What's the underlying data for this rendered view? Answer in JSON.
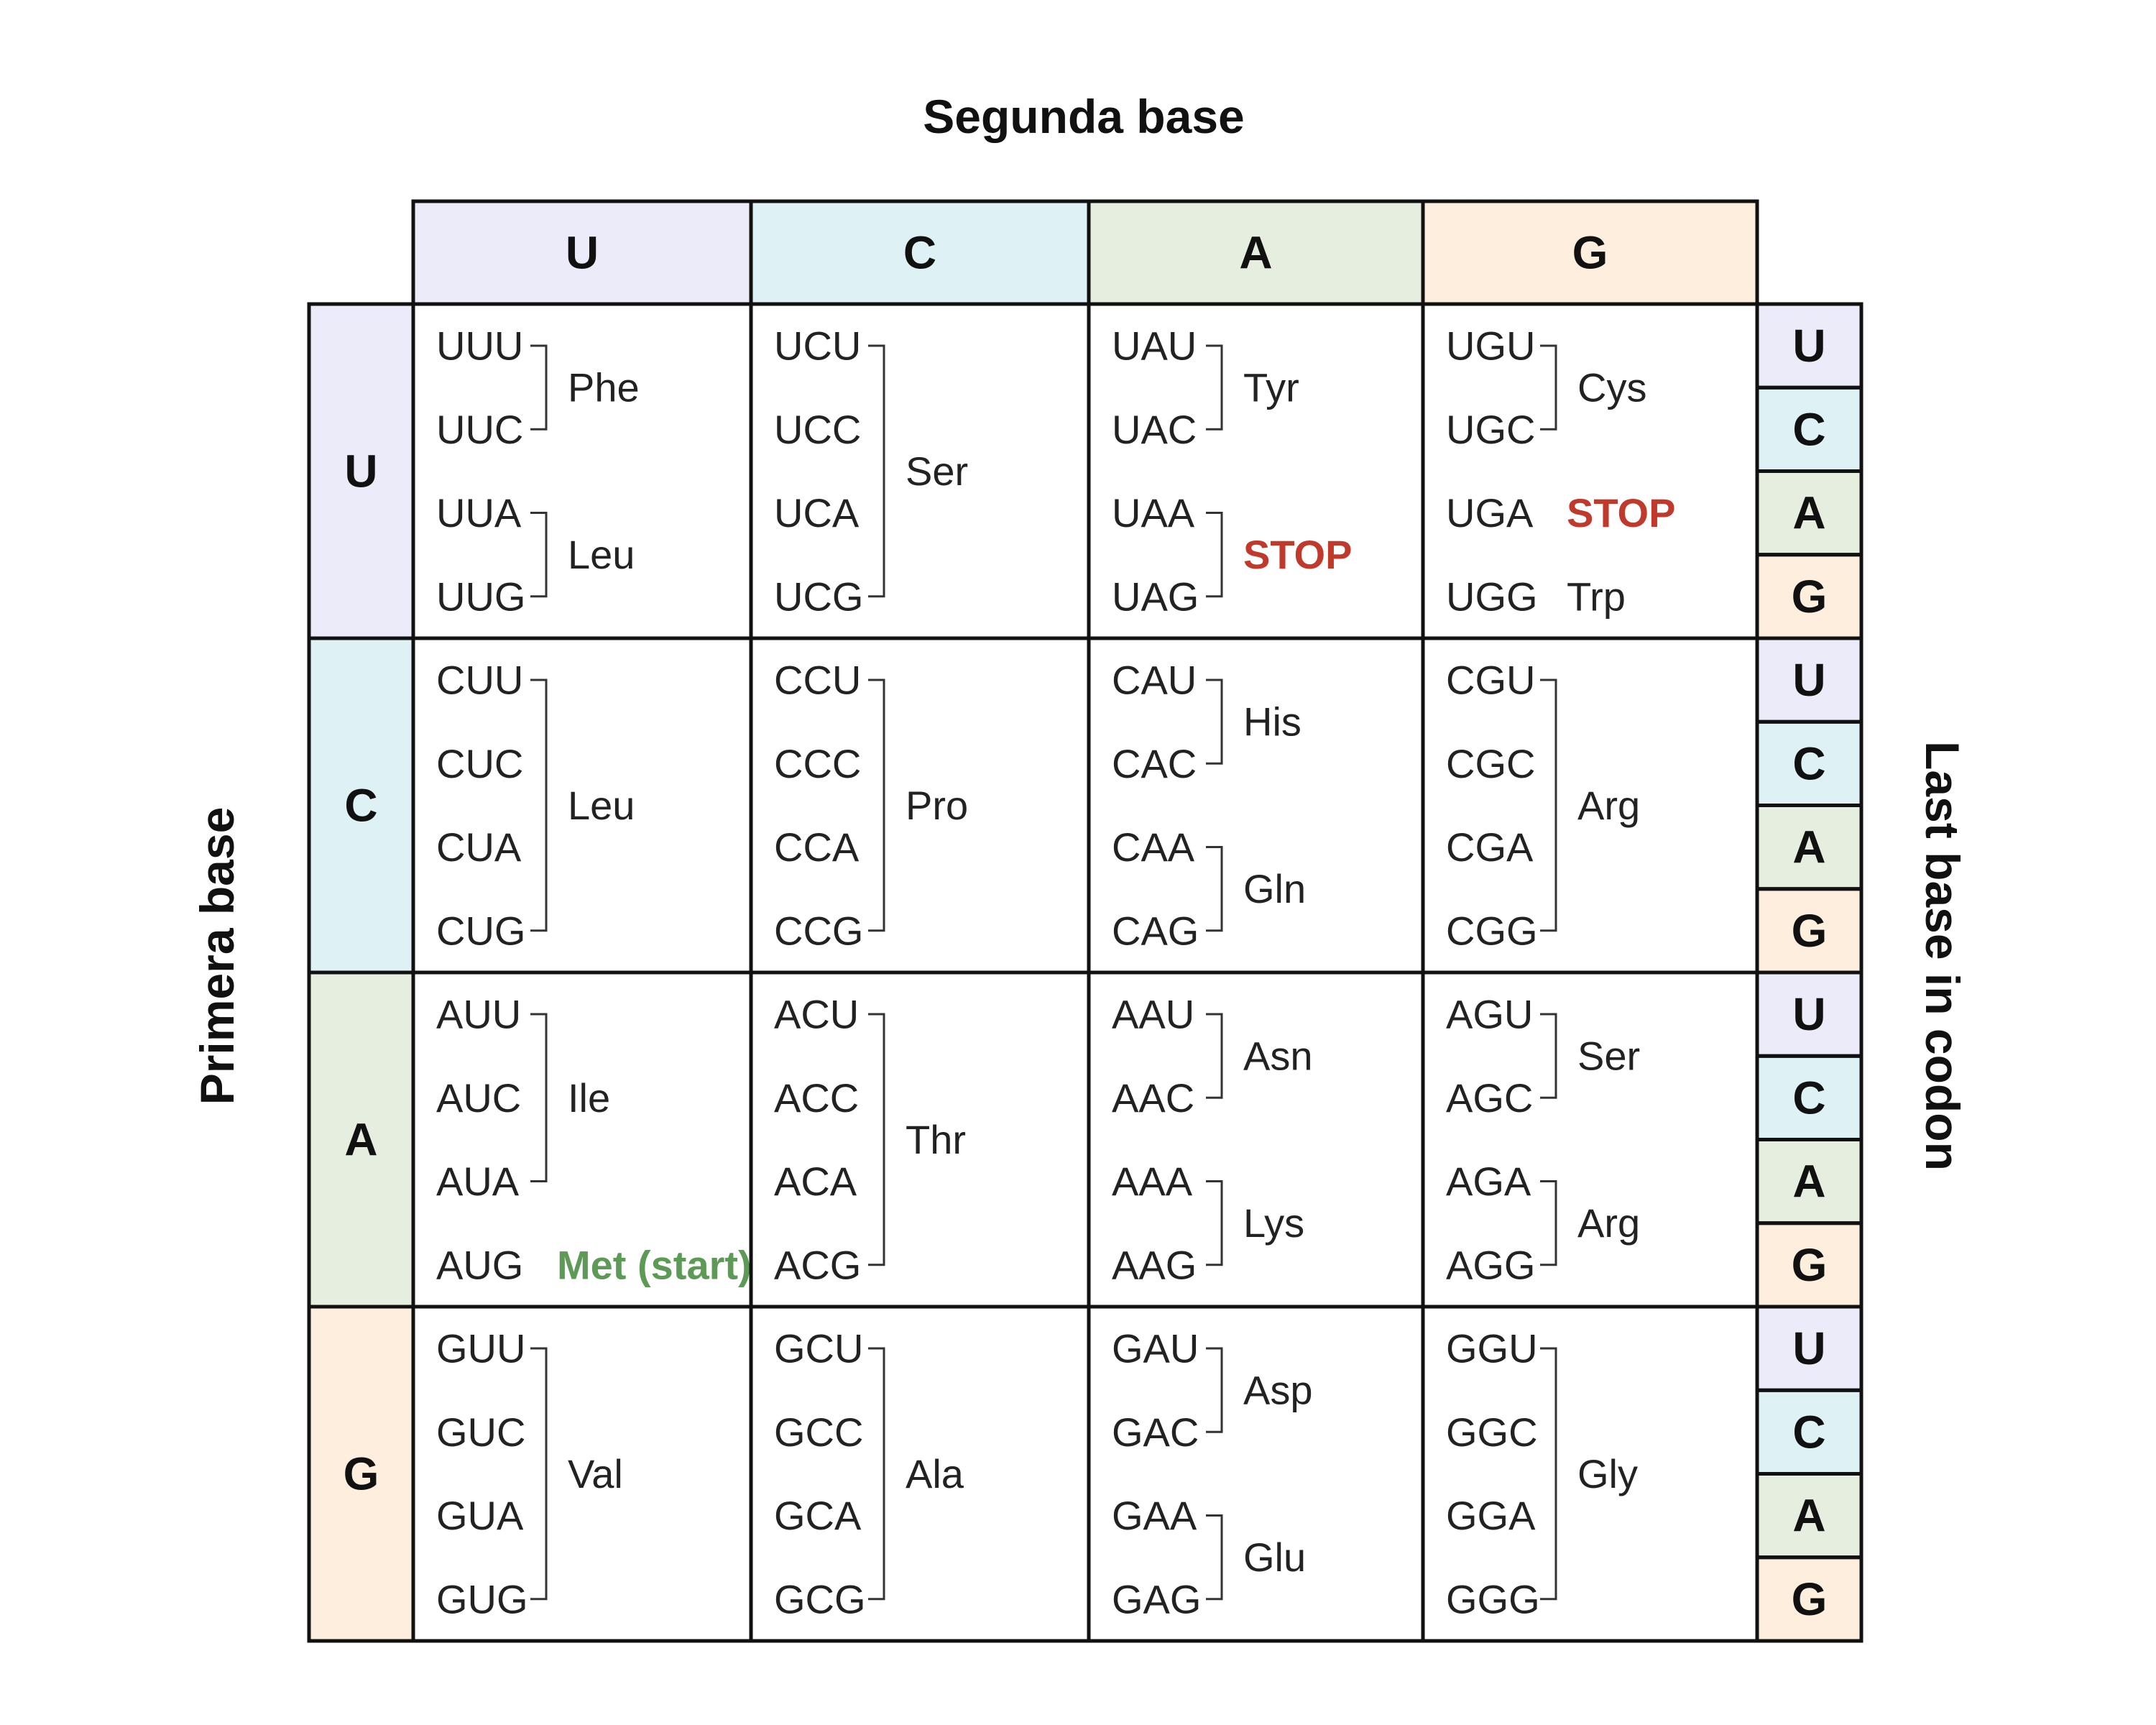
{
  "titles": {
    "top": "Segunda base",
    "left": "Primera base",
    "right": "Last base in codon"
  },
  "bases": [
    "U",
    "C",
    "A",
    "G"
  ],
  "colors": {
    "U": "#ecebf9",
    "C": "#def1f4",
    "A": "#e5eedf",
    "G": "#fdeedd",
    "stop": "#c0392b",
    "start": "#5c9a56"
  },
  "cells": [
    [
      {
        "codons": [
          "UUU",
          "UUC",
          "UUA",
          "UUG"
        ],
        "groups": [
          {
            "rows": [
              0,
              1
            ],
            "label": "Phe"
          },
          {
            "rows": [
              2,
              3
            ],
            "label": "Leu"
          }
        ]
      },
      {
        "codons": [
          "UCU",
          "UCC",
          "UCA",
          "UCG"
        ],
        "groups": [
          {
            "rows": [
              0,
              3
            ],
            "label": "Ser"
          }
        ]
      },
      {
        "codons": [
          "UAU",
          "UAC",
          "UAA",
          "UAG"
        ],
        "groups": [
          {
            "rows": [
              0,
              1
            ],
            "label": "Tyr"
          },
          {
            "rows": [
              2,
              3
            ],
            "label": "STOP",
            "style": "stop"
          }
        ]
      },
      {
        "codons": [
          "UGU",
          "UGC",
          "UGA",
          "UGG"
        ],
        "groups": [
          {
            "rows": [
              0,
              1
            ],
            "label": "Cys"
          },
          {
            "rows": [
              2,
              2
            ],
            "label": "STOP",
            "style": "stop"
          },
          {
            "rows": [
              3,
              3
            ],
            "label": "Trp"
          }
        ]
      }
    ],
    [
      {
        "codons": [
          "CUU",
          "CUC",
          "CUA",
          "CUG"
        ],
        "groups": [
          {
            "rows": [
              0,
              3
            ],
            "label": "Leu"
          }
        ]
      },
      {
        "codons": [
          "CCU",
          "CCC",
          "CCA",
          "CCG"
        ],
        "groups": [
          {
            "rows": [
              0,
              3
            ],
            "label": "Pro"
          }
        ]
      },
      {
        "codons": [
          "CAU",
          "CAC",
          "CAA",
          "CAG"
        ],
        "groups": [
          {
            "rows": [
              0,
              1
            ],
            "label": "His"
          },
          {
            "rows": [
              2,
              3
            ],
            "label": "Gln"
          }
        ]
      },
      {
        "codons": [
          "CGU",
          "CGC",
          "CGA",
          "CGG"
        ],
        "groups": [
          {
            "rows": [
              0,
              3
            ],
            "label": "Arg"
          }
        ]
      }
    ],
    [
      {
        "codons": [
          "AUU",
          "AUC",
          "AUA",
          "AUG"
        ],
        "groups": [
          {
            "rows": [
              0,
              2
            ],
            "label": "Ile"
          },
          {
            "rows": [
              3,
              3
            ],
            "label": "Met (start)",
            "style": "start"
          }
        ]
      },
      {
        "codons": [
          "ACU",
          "ACC",
          "ACA",
          "ACG"
        ],
        "groups": [
          {
            "rows": [
              0,
              3
            ],
            "label": "Thr"
          }
        ]
      },
      {
        "codons": [
          "AAU",
          "AAC",
          "AAA",
          "AAG"
        ],
        "groups": [
          {
            "rows": [
              0,
              1
            ],
            "label": "Asn"
          },
          {
            "rows": [
              2,
              3
            ],
            "label": "Lys"
          }
        ]
      },
      {
        "codons": [
          "AGU",
          "AGC",
          "AGA",
          "AGG"
        ],
        "groups": [
          {
            "rows": [
              0,
              1
            ],
            "label": "Ser"
          },
          {
            "rows": [
              2,
              3
            ],
            "label": "Arg"
          }
        ]
      }
    ],
    [
      {
        "codons": [
          "GUU",
          "GUC",
          "GUA",
          "GUG"
        ],
        "groups": [
          {
            "rows": [
              0,
              3
            ],
            "label": "Val"
          }
        ]
      },
      {
        "codons": [
          "GCU",
          "GCC",
          "GCA",
          "GCG"
        ],
        "groups": [
          {
            "rows": [
              0,
              3
            ],
            "label": "Ala"
          }
        ]
      },
      {
        "codons": [
          "GAU",
          "GAC",
          "GAA",
          "GAG"
        ],
        "groups": [
          {
            "rows": [
              0,
              1
            ],
            "label": "Asp"
          },
          {
            "rows": [
              2,
              3
            ],
            "label": "Glu"
          }
        ]
      },
      {
        "codons": [
          "GGU",
          "GGC",
          "GGA",
          "GGG"
        ],
        "groups": [
          {
            "rows": [
              0,
              3
            ],
            "label": "Gly"
          }
        ]
      }
    ]
  ]
}
